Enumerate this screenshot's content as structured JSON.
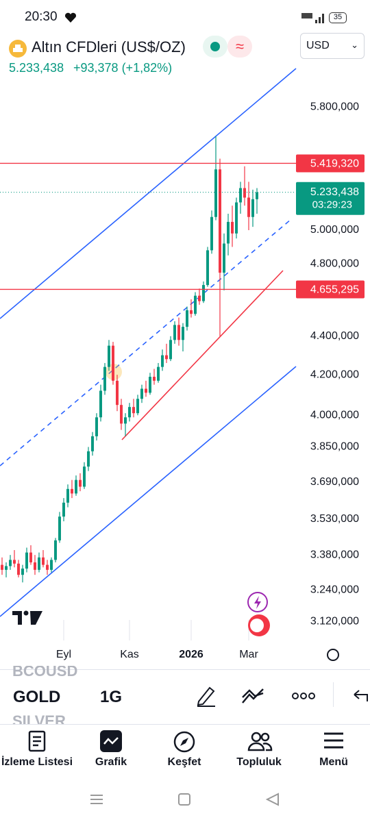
{
  "status_bar": {
    "time": "20:30",
    "battery": "35"
  },
  "header": {
    "title": "Altın CFDleri (US$/OZ)",
    "price": "5.233,438",
    "change": "+93,378 (+1,82%)",
    "currency": "USD"
  },
  "chart_data": {
    "type": "candlestick",
    "candles": [
      [
        3340,
        3370,
        3300,
        3320
      ],
      [
        3320,
        3350,
        3290,
        3335
      ],
      [
        3335,
        3380,
        3320,
        3360
      ],
      [
        3360,
        3400,
        3330,
        3345
      ],
      [
        3345,
        3360,
        3290,
        3300
      ],
      [
        3300,
        3340,
        3270,
        3325
      ],
      [
        3325,
        3410,
        3310,
        3390
      ],
      [
        3390,
        3420,
        3340,
        3350
      ],
      [
        3350,
        3380,
        3300,
        3320
      ],
      [
        3320,
        3390,
        3310,
        3370
      ],
      [
        3370,
        3400,
        3330,
        3340
      ],
      [
        3340,
        3360,
        3300,
        3320
      ],
      [
        3320,
        3370,
        3310,
        3360
      ],
      [
        3360,
        3450,
        3350,
        3440
      ],
      [
        3440,
        3560,
        3430,
        3540
      ],
      [
        3540,
        3620,
        3520,
        3600
      ],
      [
        3600,
        3680,
        3580,
        3660
      ],
      [
        3660,
        3700,
        3620,
        3640
      ],
      [
        3640,
        3720,
        3630,
        3700
      ],
      [
        3700,
        3730,
        3650,
        3670
      ],
      [
        3670,
        3780,
        3660,
        3760
      ],
      [
        3760,
        3850,
        3740,
        3830
      ],
      [
        3830,
        3920,
        3810,
        3900
      ],
      [
        3900,
        4010,
        3880,
        3990
      ],
      [
        3990,
        4150,
        3970,
        4120
      ],
      [
        4120,
        4260,
        4100,
        4240
      ],
      [
        4240,
        4380,
        4220,
        4350
      ],
      [
        4350,
        4370,
        4150,
        4170
      ],
      [
        4170,
        4200,
        4020,
        4050
      ],
      [
        4050,
        4080,
        3930,
        3960
      ],
      [
        3960,
        4010,
        3900,
        3990
      ],
      [
        3990,
        4060,
        3970,
        4040
      ],
      [
        4040,
        4080,
        3990,
        4010
      ],
      [
        4010,
        4100,
        4000,
        4080
      ],
      [
        4080,
        4150,
        4060,
        4130
      ],
      [
        4130,
        4170,
        4090,
        4110
      ],
      [
        4110,
        4210,
        4100,
        4190
      ],
      [
        4190,
        4230,
        4150,
        4170
      ],
      [
        4170,
        4260,
        4160,
        4240
      ],
      [
        4240,
        4330,
        4220,
        4300
      ],
      [
        4300,
        4360,
        4260,
        4280
      ],
      [
        4280,
        4400,
        4270,
        4380
      ],
      [
        4380,
        4480,
        4360,
        4460
      ],
      [
        4460,
        4500,
        4350,
        4380
      ],
      [
        4380,
        4470,
        4320,
        4450
      ],
      [
        4450,
        4560,
        4430,
        4540
      ],
      [
        4540,
        4600,
        4500,
        4520
      ],
      [
        4520,
        4640,
        4510,
        4620
      ],
      [
        4620,
        4660,
        4570,
        4590
      ],
      [
        4590,
        4700,
        4580,
        4680
      ],
      [
        4680,
        4900,
        4670,
        4880
      ],
      [
        4880,
        5120,
        4860,
        5080
      ],
      [
        5080,
        5600,
        5060,
        5380
      ],
      [
        5380,
        5450,
        4400,
        4750
      ],
      [
        4750,
        4980,
        4650,
        4920
      ],
      [
        4920,
        5100,
        4850,
        5050
      ],
      [
        5050,
        5150,
        4900,
        4980
      ],
      [
        4980,
        5200,
        4950,
        5170
      ],
      [
        5170,
        5300,
        5100,
        5260
      ],
      [
        5260,
        5400,
        5150,
        5200
      ],
      [
        5200,
        5300,
        5000,
        5080
      ],
      [
        5080,
        5250,
        5020,
        5190
      ],
      [
        5190,
        5260,
        5100,
        5233.438
      ]
    ],
    "ylim": [
      3049,
      6126
    ],
    "log": true,
    "yticks": [
      {
        "value": 5800,
        "label": "5.800,000"
      },
      {
        "value": 5000,
        "label": "5.000,000"
      },
      {
        "value": 4800,
        "label": "4.800,000"
      },
      {
        "value": 4400,
        "label": "4.400,000"
      },
      {
        "value": 4200,
        "label": "4.200,000"
      },
      {
        "value": 4000,
        "label": "4.000,000"
      },
      {
        "value": 3850,
        "label": "3.850,000"
      },
      {
        "value": 3690,
        "label": "3.690,000"
      },
      {
        "value": 3530,
        "label": "3.530,000"
      },
      {
        "value": 3380,
        "label": "3.380,000"
      },
      {
        "value": 3240,
        "label": "3.240,000"
      },
      {
        "value": 3120,
        "label": "3.120,000"
      }
    ],
    "xlim": [
      -0.5,
      89.5
    ],
    "xticks": [
      {
        "value": 15,
        "label": "Eyl"
      },
      {
        "value": 31,
        "label": "Kas"
      },
      {
        "value": 46,
        "label": "2026"
      },
      {
        "value": 60,
        "label": "Mar"
      }
    ],
    "up_color": "#089981",
    "down_color": "#f23645",
    "price_lines": [
      {
        "value": 5419.32,
        "label": "5.419,320",
        "color": "#f23645"
      },
      {
        "value": 4655.295,
        "label": "4.655,295",
        "color": "#f23645"
      }
    ],
    "last_price": {
      "value": 5233.438,
      "label": "5.233,438",
      "countdown": "03:29:23",
      "color": "#089981"
    }
  },
  "toolbar": {
    "symbols": [
      "BCOUSD",
      "GOLD",
      "SILVER"
    ],
    "interval": "1G"
  },
  "nav": [
    "İzleme Listesi",
    "Grafik",
    "Keşfet",
    "Topluluk",
    "Menü"
  ]
}
